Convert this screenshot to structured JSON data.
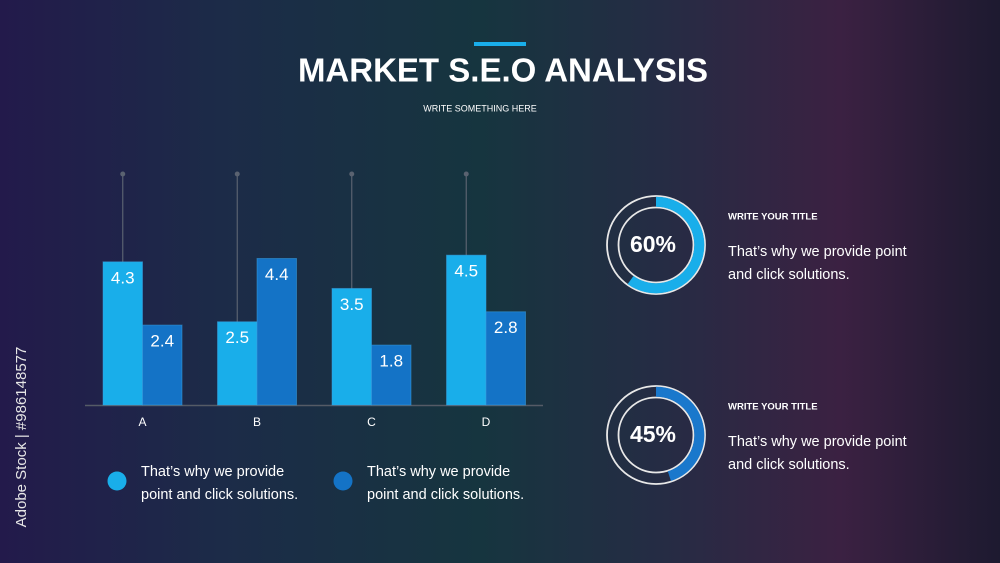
{
  "header": {
    "title": "MARKET S.E.O ANALYSIS",
    "subtitle": "WRITE SOMETHING HERE"
  },
  "watermark": "Adobe Stock | #986148577",
  "chart_data": [
    {
      "type": "bar",
      "categories": [
        "A",
        "B",
        "C",
        "D"
      ],
      "series": [
        {
          "name": "That’s why we provide point and click solutions.",
          "color": "#19aeea",
          "values": [
            4.3,
            2.5,
            3.5,
            4.5
          ]
        },
        {
          "name": "That’s why we provide point and click solutions.",
          "color": "#1473c6",
          "values": [
            2.4,
            4.4,
            1.8,
            2.8
          ]
        }
      ]
    },
    {
      "type": "donut",
      "values": [
        60
      ],
      "value_labels": [
        "60%"
      ],
      "color": "#19aeea",
      "title": "WRITE YOUR TITLE",
      "text": "That’s why we provide point and click solutions."
    },
    {
      "type": "donut",
      "values": [
        45
      ],
      "value_labels": [
        "45%"
      ],
      "color": "#1a78cc",
      "title": "WRITE YOUR TITLE",
      "text": "That’s why we provide point and click solutions."
    }
  ]
}
